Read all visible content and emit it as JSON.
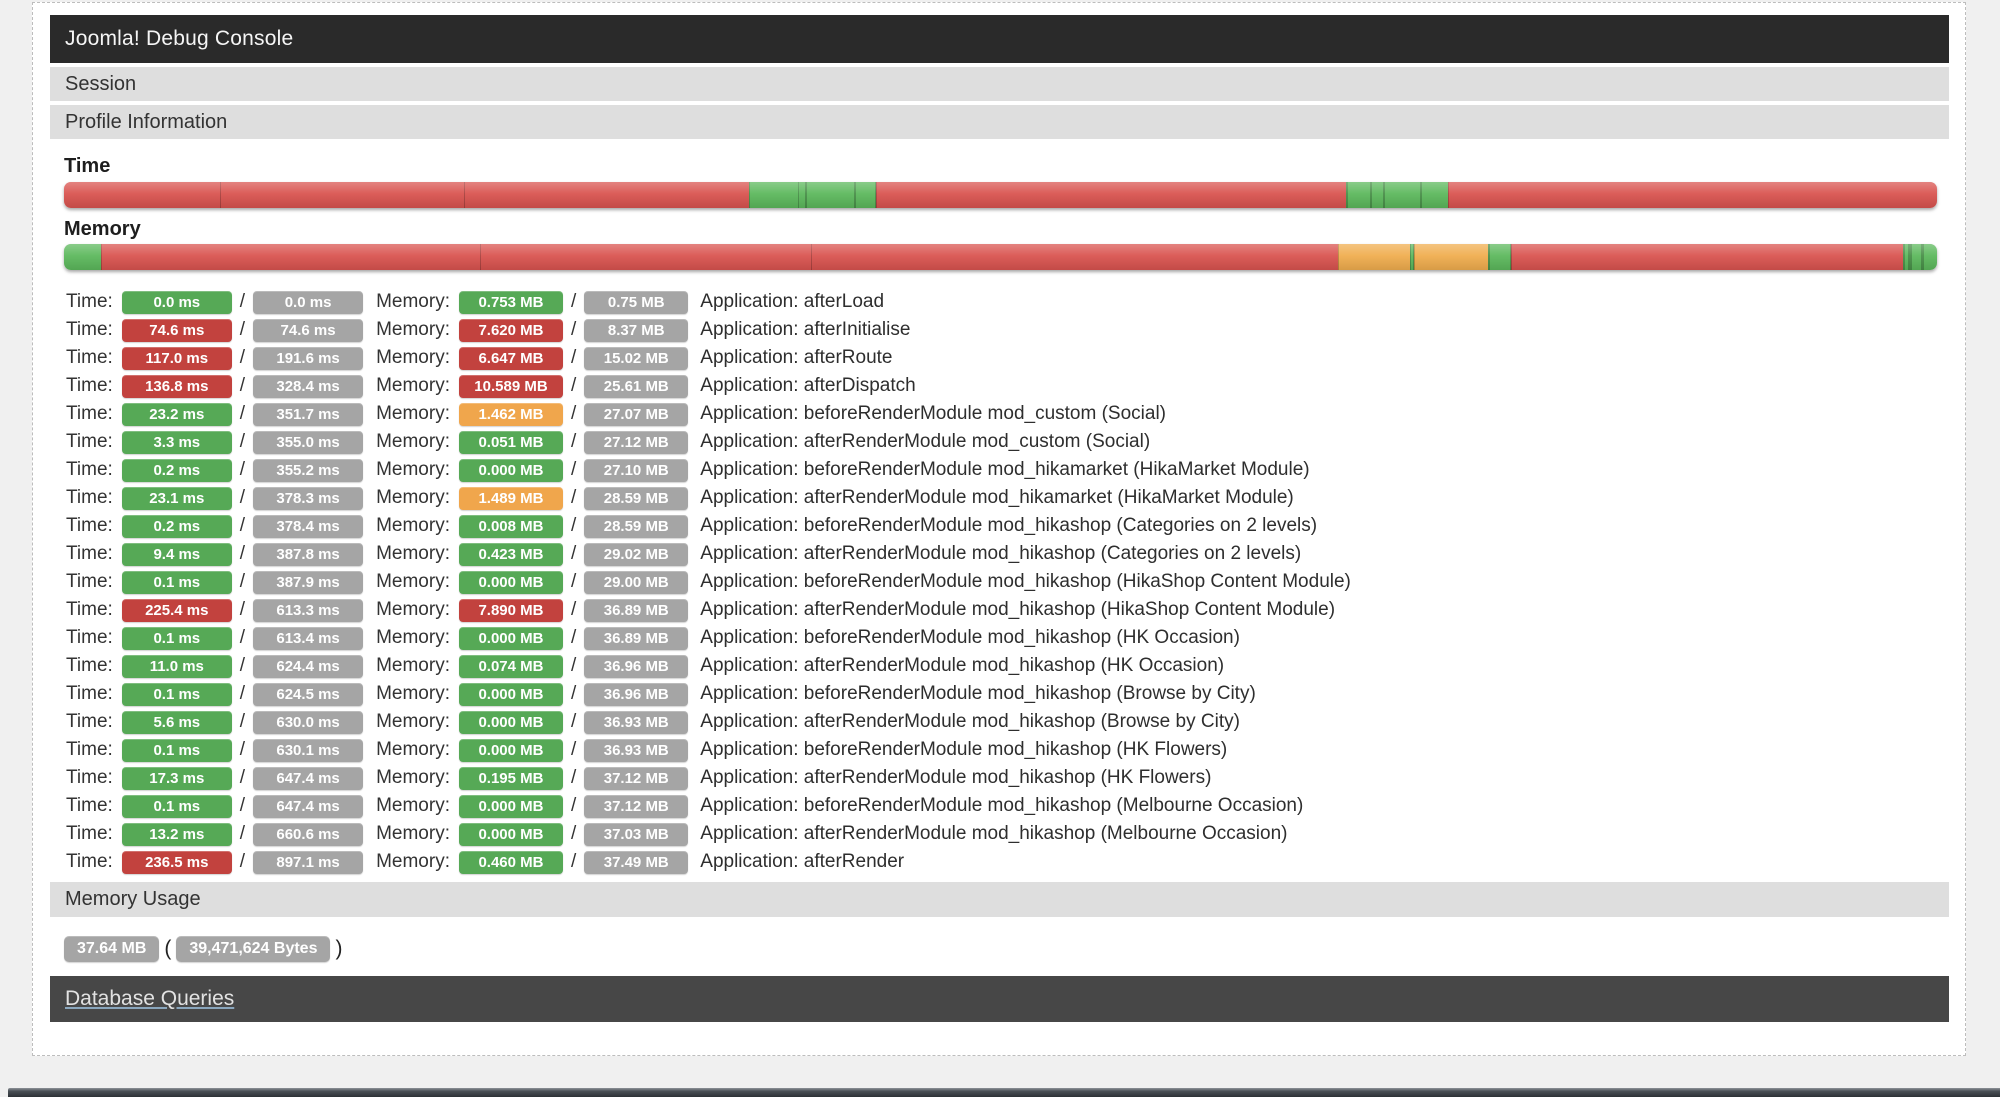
{
  "title": "Joomla! Debug Console",
  "sections": {
    "session": "Session",
    "profile": "Profile Information",
    "memory_usage": "Memory Usage",
    "database_queries": "Database Queries"
  },
  "profile": {
    "time_heading": "Time",
    "memory_heading": "Memory",
    "labels": {
      "time": "Time:",
      "memory": "Memory:",
      "sep": "/"
    },
    "rows": [
      {
        "time": "0.0 ms",
        "time_ms": 0.0,
        "time_color": "green",
        "time_total": "0.0 ms",
        "mem": "0.753 MB",
        "mem_mb": 0.753,
        "mem_color": "green",
        "mem_total": "0.75 MB",
        "app": "Application: afterLoad"
      },
      {
        "time": "74.6 ms",
        "time_ms": 74.6,
        "time_color": "red",
        "time_total": "74.6 ms",
        "mem": "7.620 MB",
        "mem_mb": 7.62,
        "mem_color": "red",
        "mem_total": "8.37 MB",
        "app": "Application: afterInitialise"
      },
      {
        "time": "117.0 ms",
        "time_ms": 117.0,
        "time_color": "red",
        "time_total": "191.6 ms",
        "mem": "6.647 MB",
        "mem_mb": 6.647,
        "mem_color": "red",
        "mem_total": "15.02 MB",
        "app": "Application: afterRoute"
      },
      {
        "time": "136.8 ms",
        "time_ms": 136.8,
        "time_color": "red",
        "time_total": "328.4 ms",
        "mem": "10.589 MB",
        "mem_mb": 10.589,
        "mem_color": "red",
        "mem_total": "25.61 MB",
        "app": "Application: afterDispatch"
      },
      {
        "time": "23.2 ms",
        "time_ms": 23.2,
        "time_color": "green",
        "time_total": "351.7 ms",
        "mem": "1.462 MB",
        "mem_mb": 1.462,
        "mem_color": "orange",
        "mem_total": "27.07 MB",
        "app": "Application: beforeRenderModule mod_custom (Social)"
      },
      {
        "time": "3.3 ms",
        "time_ms": 3.3,
        "time_color": "green",
        "time_total": "355.0 ms",
        "mem": "0.051 MB",
        "mem_mb": 0.051,
        "mem_color": "green",
        "mem_total": "27.12 MB",
        "app": "Application: afterRenderModule mod_custom (Social)"
      },
      {
        "time": "0.2 ms",
        "time_ms": 0.2,
        "time_color": "green",
        "time_total": "355.2 ms",
        "mem": "0.000 MB",
        "mem_mb": 0.0,
        "mem_color": "green",
        "mem_total": "27.10 MB",
        "app": "Application: beforeRenderModule mod_hikamarket (HikaMarket Module)"
      },
      {
        "time": "23.1 ms",
        "time_ms": 23.1,
        "time_color": "green",
        "time_total": "378.3 ms",
        "mem": "1.489 MB",
        "mem_mb": 1.489,
        "mem_color": "orange",
        "mem_total": "28.59 MB",
        "app": "Application: afterRenderModule mod_hikamarket (HikaMarket Module)"
      },
      {
        "time": "0.2 ms",
        "time_ms": 0.2,
        "time_color": "green",
        "time_total": "378.4 ms",
        "mem": "0.008 MB",
        "mem_mb": 0.008,
        "mem_color": "green",
        "mem_total": "28.59 MB",
        "app": "Application: beforeRenderModule mod_hikashop (Categories on 2 levels)"
      },
      {
        "time": "9.4 ms",
        "time_ms": 9.4,
        "time_color": "green",
        "time_total": "387.8 ms",
        "mem": "0.423 MB",
        "mem_mb": 0.423,
        "mem_color": "green",
        "mem_total": "29.02 MB",
        "app": "Application: afterRenderModule mod_hikashop (Categories on 2 levels)"
      },
      {
        "time": "0.1 ms",
        "time_ms": 0.1,
        "time_color": "green",
        "time_total": "387.9 ms",
        "mem": "0.000 MB",
        "mem_mb": 0.0,
        "mem_color": "green",
        "mem_total": "29.00 MB",
        "app": "Application: beforeRenderModule mod_hikashop (HikaShop Content Module)"
      },
      {
        "time": "225.4 ms",
        "time_ms": 225.4,
        "time_color": "red",
        "time_total": "613.3 ms",
        "mem": "7.890 MB",
        "mem_mb": 7.89,
        "mem_color": "red",
        "mem_total": "36.89 MB",
        "app": "Application: afterRenderModule mod_hikashop (HikaShop Content Module)"
      },
      {
        "time": "0.1 ms",
        "time_ms": 0.1,
        "time_color": "green",
        "time_total": "613.4 ms",
        "mem": "0.000 MB",
        "mem_mb": 0.0,
        "mem_color": "green",
        "mem_total": "36.89 MB",
        "app": "Application: beforeRenderModule mod_hikashop (HK Occasion)"
      },
      {
        "time": "11.0 ms",
        "time_ms": 11.0,
        "time_color": "green",
        "time_total": "624.4 ms",
        "mem": "0.074 MB",
        "mem_mb": 0.074,
        "mem_color": "green",
        "mem_total": "36.96 MB",
        "app": "Application: afterRenderModule mod_hikashop (HK Occasion)"
      },
      {
        "time": "0.1 ms",
        "time_ms": 0.1,
        "time_color": "green",
        "time_total": "624.5 ms",
        "mem": "0.000 MB",
        "mem_mb": 0.0,
        "mem_color": "green",
        "mem_total": "36.96 MB",
        "app": "Application: beforeRenderModule mod_hikashop (Browse by City)"
      },
      {
        "time": "5.6 ms",
        "time_ms": 5.6,
        "time_color": "green",
        "time_total": "630.0 ms",
        "mem": "0.000 MB",
        "mem_mb": 0.0,
        "mem_color": "green",
        "mem_total": "36.93 MB",
        "app": "Application: afterRenderModule mod_hikashop (Browse by City)"
      },
      {
        "time": "0.1 ms",
        "time_ms": 0.1,
        "time_color": "green",
        "time_total": "630.1 ms",
        "mem": "0.000 MB",
        "mem_mb": 0.0,
        "mem_color": "green",
        "mem_total": "36.93 MB",
        "app": "Application: beforeRenderModule mod_hikashop (HK Flowers)"
      },
      {
        "time": "17.3 ms",
        "time_ms": 17.3,
        "time_color": "green",
        "time_total": "647.4 ms",
        "mem": "0.195 MB",
        "mem_mb": 0.195,
        "mem_color": "green",
        "mem_total": "37.12 MB",
        "app": "Application: afterRenderModule mod_hikashop (HK Flowers)"
      },
      {
        "time": "0.1 ms",
        "time_ms": 0.1,
        "time_color": "green",
        "time_total": "647.4 ms",
        "mem": "0.000 MB",
        "mem_mb": 0.0,
        "mem_color": "green",
        "mem_total": "37.12 MB",
        "app": "Application: beforeRenderModule mod_hikashop (Melbourne Occasion)"
      },
      {
        "time": "13.2 ms",
        "time_ms": 13.2,
        "time_color": "green",
        "time_total": "660.6 ms",
        "mem": "0.000 MB",
        "mem_mb": 0.0,
        "mem_color": "green",
        "mem_total": "37.03 MB",
        "app": "Application: afterRenderModule mod_hikashop (Melbourne Occasion)"
      },
      {
        "time": "236.5 ms",
        "time_ms": 236.5,
        "time_color": "red",
        "time_total": "897.1 ms",
        "mem": "0.460 MB",
        "mem_mb": 0.46,
        "mem_color": "green",
        "mem_total": "37.49 MB",
        "app": "Application: afterRender"
      }
    ]
  },
  "memory_usage": {
    "mb": "37.64 MB",
    "open_paren": "(",
    "bytes": "39,471,624 Bytes",
    "close_paren": ")"
  },
  "colors": {
    "header_bg": "#2a2a2a",
    "header_text": "#f5f5f5",
    "band_bg": "#dedede",
    "band_text": "#333333",
    "db_band_bg": "#474747",
    "db_band_text": "#e2e2e2",
    "badge_green": "#56a956",
    "badge_red": "#c2423e",
    "badge_orange": "#f0a64c",
    "badge_gray": "#a5a5a5",
    "bar_green": "#5cb85c",
    "bar_red": "#d9534f",
    "bar_orange": "#f0ad4e"
  }
}
